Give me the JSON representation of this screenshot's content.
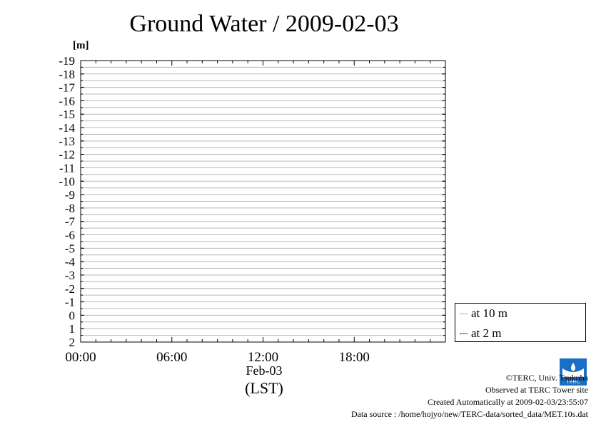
{
  "title": "Ground Water / 2009-02-03",
  "unit_label": "[m]",
  "date_label": "Feb-03",
  "chart_data": {
    "type": "line",
    "title": "Ground Water / 2009-02-03",
    "xlabel": "(LST)",
    "ylabel": "[m]",
    "x_ticks": [
      "00:00",
      "06:00",
      "12:00",
      "18:00"
    ],
    "x_range": [
      "00:00",
      "24:00"
    ],
    "y_ticks": [
      -19,
      -18,
      -17,
      -16,
      -15,
      -14,
      -13,
      -12,
      -11,
      -10,
      -9,
      -8,
      -7,
      -6,
      -5,
      -4,
      -3,
      -2,
      -1,
      0,
      1,
      2
    ],
    "ylim": [
      -19,
      2
    ],
    "y_inverted": true,
    "grid": true,
    "legend_position": "right-bottom-outside",
    "series": [
      {
        "name": "at 10 m",
        "color": "#00ff00",
        "values": []
      },
      {
        "name": "at 2 m",
        "color": "#0000ff",
        "values": []
      }
    ]
  },
  "legend": [
    {
      "label": "at 10 m",
      "color": "#00ff00"
    },
    {
      "label": "at 2 m",
      "color": "#0000ff"
    }
  ],
  "credits": {
    "copyright": "©TERC, Univ. Tsukuba",
    "observed": "Observed at TERC Tower site",
    "created": "Created Automatically at 2009-02-03/23:55:07",
    "source": "Data source : /home/hojyo/new/TERC-data/sorted_data/MET.10s.dat"
  },
  "logo": {
    "name": "terc-logo-icon",
    "text": "TERC",
    "color": "#1a6fc4"
  }
}
